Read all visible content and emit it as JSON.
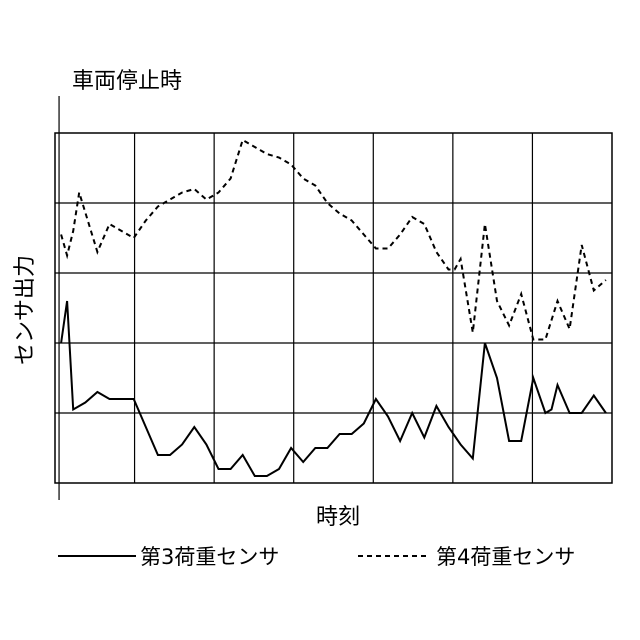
{
  "chart_data": {
    "type": "line",
    "title": "",
    "annotation": "車両停止時",
    "xlabel": "時刻",
    "ylabel": "センサ出力",
    "grid": true,
    "legend_position": "bottom",
    "series": [
      {
        "name": "第3荷重センサ",
        "style": "solid",
        "x": [
          0.5,
          1.0,
          1.5,
          2.5,
          3.5,
          4.5,
          5.5,
          6.5,
          7.5,
          8.5,
          9.5,
          10.5,
          11.5,
          12.5,
          13.5,
          14.5,
          15.5,
          16.5,
          17.5,
          18.5,
          19.5,
          20.5,
          21.5,
          22.5,
          23.5,
          24.5,
          25.5,
          26.5,
          27.5,
          28.5,
          29.5,
          30.5,
          31.5,
          32.5,
          33.5,
          34.5,
          35.5,
          36.5,
          37.5,
          38.5,
          39.5,
          40.5,
          41.0,
          41.5,
          42.5,
          43.5,
          44.5,
          45.5
        ],
        "y": [
          2.0,
          2.6,
          1.05,
          1.15,
          1.3,
          1.2,
          1.2,
          1.2,
          0.8,
          0.4,
          0.4,
          0.55,
          0.8,
          0.55,
          0.2,
          0.2,
          0.4,
          0.1,
          0.1,
          0.2,
          0.5,
          0.3,
          0.5,
          0.5,
          0.7,
          0.7,
          0.85,
          1.2,
          0.95,
          0.6,
          1.0,
          0.65,
          1.1,
          0.8,
          0.55,
          0.35,
          2.0,
          1.5,
          0.6,
          0.6,
          1.5,
          1.0,
          1.05,
          1.4,
          1.0,
          1.0,
          1.25,
          1.0
        ]
      },
      {
        "name": "第4荷重センサ",
        "style": "dashed",
        "x": [
          0.5,
          1.0,
          1.5,
          2.0,
          3.5,
          4.5,
          5.5,
          6.5,
          7.5,
          8.5,
          9.5,
          10.5,
          11.5,
          12.5,
          13.5,
          14.5,
          15.5,
          16.5,
          17.5,
          18.5,
          19.5,
          20.5,
          21.5,
          22.5,
          23.5,
          24.5,
          25.5,
          26.5,
          27.5,
          28.5,
          29.5,
          30.5,
          31.5,
          32.5,
          33.0,
          33.5,
          34.5,
          35.5,
          36.5,
          37.5,
          38.5,
          39.5,
          40.5,
          41.5,
          42.5,
          43.5,
          44.5,
          45.5
        ],
        "y": [
          3.55,
          3.25,
          3.6,
          4.15,
          3.3,
          3.7,
          3.6,
          3.5,
          3.75,
          3.95,
          4.05,
          4.15,
          4.2,
          4.05,
          4.15,
          4.35,
          4.9,
          4.8,
          4.7,
          4.65,
          4.55,
          4.35,
          4.25,
          4.0,
          3.85,
          3.75,
          3.55,
          3.35,
          3.35,
          3.55,
          3.8,
          3.7,
          3.3,
          3.05,
          3.05,
          3.2,
          2.15,
          3.7,
          2.6,
          2.25,
          2.7,
          2.05,
          2.05,
          2.6,
          2.2,
          3.4,
          2.75,
          2.9
        ]
      }
    ],
    "xlim": [
      0,
      46
    ],
    "ylim": [
      0,
      5
    ],
    "x_grid_count": 6,
    "y_grid_count": 5
  }
}
